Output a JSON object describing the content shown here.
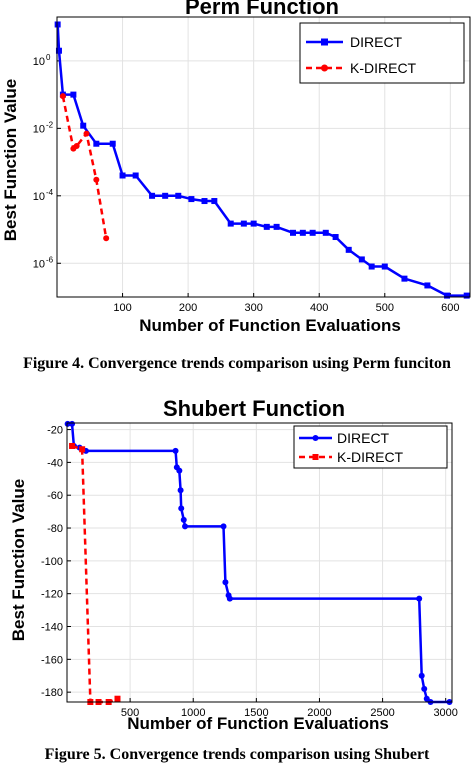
{
  "chart_data": [
    {
      "type": "line",
      "title": "Perm Function",
      "xlabel": "Number of Function Evaluations",
      "ylabel": "Best Function Value",
      "yscale": "log",
      "xlim": [
        0,
        630
      ],
      "ylim": [
        1e-07,
        20
      ],
      "xticks": [
        100,
        200,
        300,
        400,
        500,
        600
      ],
      "xtick_labels": [
        "100",
        "200",
        "300",
        "400",
        "500",
        "600"
      ],
      "yticks": [
        1,
        0.01,
        0.0001,
        1e-06
      ],
      "ytick_labels": [
        "10",
        "10",
        "10",
        "10"
      ],
      "ytick_exponents": [
        "0",
        "-2",
        "-4",
        "-6"
      ],
      "grid": true,
      "legend_position": "top-right",
      "series": [
        {
          "name": "DIRECT",
          "color": "#0000ff",
          "line_style": "solid",
          "marker": "square",
          "points": [
            [
              1,
              12
            ],
            [
              3,
              2
            ],
            [
              9,
              0.1
            ],
            [
              25,
              0.1
            ],
            [
              40,
              0.012
            ],
            [
              60,
              0.0035
            ],
            [
              85,
              0.0035
            ],
            [
              100,
              0.0004
            ],
            [
              120,
              0.0004
            ],
            [
              145,
              0.0001
            ],
            [
              165,
              0.0001
            ],
            [
              185,
              0.0001
            ],
            [
              205,
              8e-05
            ],
            [
              225,
              7e-05
            ],
            [
              240,
              7e-05
            ],
            [
              265,
              1.5e-05
            ],
            [
              285,
              1.5e-05
            ],
            [
              300,
              1.5e-05
            ],
            [
              320,
              1.2e-05
            ],
            [
              335,
              1.2e-05
            ],
            [
              360,
              8e-06
            ],
            [
              375,
              8e-06
            ],
            [
              390,
              8e-06
            ],
            [
              410,
              8e-06
            ],
            [
              425,
              6e-06
            ],
            [
              445,
              2.5e-06
            ],
            [
              465,
              1.3e-06
            ],
            [
              480,
              8e-07
            ],
            [
              500,
              8e-07
            ],
            [
              530,
              3.5e-07
            ],
            [
              565,
              2.2e-07
            ],
            [
              595,
              1.1e-07
            ],
            [
              625,
              1.1e-07
            ]
          ]
        },
        {
          "name": "K-DIRECT",
          "color": "#ff0000",
          "line_style": "dashed",
          "marker": "circle",
          "points": [
            [
              9,
              0.09
            ],
            [
              25,
              0.0025
            ],
            [
              30,
              0.003
            ],
            [
              45,
              0.007
            ],
            [
              60,
              0.0003
            ],
            [
              75,
              5.5e-06
            ]
          ]
        }
      ]
    },
    {
      "type": "line",
      "title": "Shubert Function",
      "xlabel": "Number of Function Evaluations",
      "ylabel": "Best Function Value",
      "xlim": [
        0,
        3050
      ],
      "ylim": [
        -186,
        -16
      ],
      "xticks": [
        500,
        1000,
        1500,
        2000,
        2500,
        3000
      ],
      "xtick_labels": [
        "500",
        "1000",
        "1500",
        "2000",
        "2500",
        "3000"
      ],
      "yticks": [
        -20,
        -40,
        -60,
        -80,
        -100,
        -120,
        -140,
        -160,
        -180
      ],
      "ytick_labels": [
        "-20",
        "-40",
        "-60",
        "-80",
        "-100",
        "-120",
        "-140",
        "-160",
        "-180"
      ],
      "grid": true,
      "legend_position": "top-right",
      "series": [
        {
          "name": "DIRECT",
          "color": "#0000ff",
          "line_style": "solid",
          "marker": "circle",
          "points": [
            [
              5,
              -16.5
            ],
            [
              40,
              -16.5
            ],
            [
              55,
              -30
            ],
            [
              100,
              -31
            ],
            [
              150,
              -33
            ],
            [
              860,
              -33
            ],
            [
              870,
              -43
            ],
            [
              890,
              -45
            ],
            [
              900,
              -57
            ],
            [
              905,
              -68
            ],
            [
              925,
              -75
            ],
            [
              935,
              -79
            ],
            [
              1240,
              -79
            ],
            [
              1255,
              -113
            ],
            [
              1280,
              -121
            ],
            [
              1290,
              -123
            ],
            [
              2790,
              -123
            ],
            [
              2810,
              -170
            ],
            [
              2830,
              -178
            ],
            [
              2850,
              -184
            ],
            [
              2880,
              -186
            ],
            [
              3030,
              -186
            ]
          ]
        },
        {
          "name": "K-DIRECT",
          "color": "#ff0000",
          "line_style": "dashed",
          "marker": "square",
          "points": [
            [
              40,
              -30
            ],
            [
              120,
              -32
            ],
            [
              185,
              -186
            ],
            [
              250,
              -186
            ],
            [
              330,
              -186
            ],
            [
              400,
              -184
            ]
          ]
        }
      ]
    }
  ],
  "captions": {
    "figure4": "Figure 4. Convergence trends comparison using Perm funciton",
    "figure5": "Figure 5. Convergence trends comparison using Shubert"
  }
}
